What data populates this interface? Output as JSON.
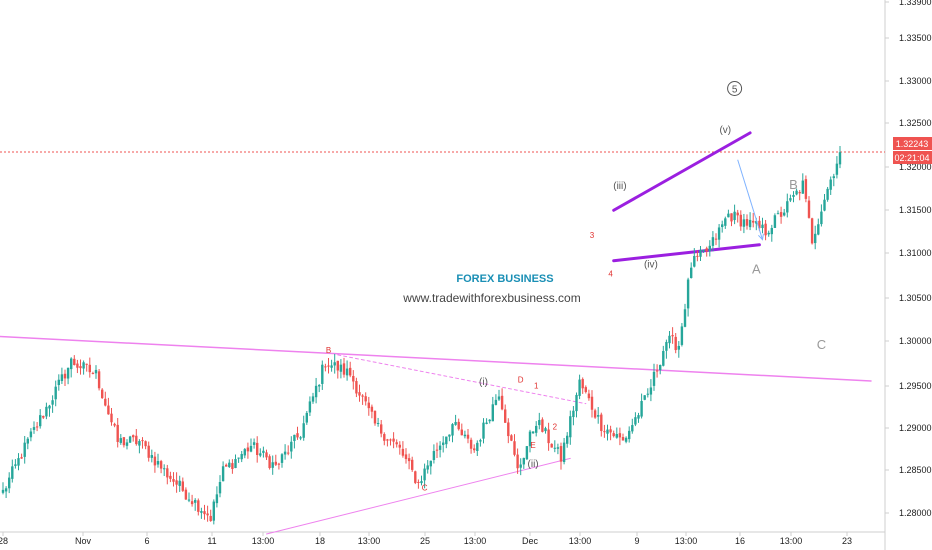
{
  "chart_data": {
    "type": "candlestick",
    "title": "",
    "xlabel": "",
    "ylabel": "",
    "ylim": [
      1.277,
      1.34
    ],
    "grid": false,
    "legend": "none",
    "x_ticks": [
      "28",
      "Nov",
      "6",
      "11",
      "13:00",
      "18",
      "13:00",
      "25",
      "13:00",
      "Dec",
      "13:00",
      "9",
      "13:00",
      "16",
      "13:00",
      "23"
    ],
    "y_ticks": [
      "1.28000",
      "1.28500",
      "1.29000",
      "1.29500",
      "1.30000",
      "1.30500",
      "1.31000",
      "1.31500",
      "1.32000",
      "1.32500",
      "1.33000",
      "1.33500",
      "1.33900"
    ],
    "price_label": "1.32243",
    "price_line": 1.32243,
    "countdown_label": "02:21:04",
    "watermark_title": "FOREX BUSINESS",
    "watermark_url": "www.tradewithforexbusiness.com",
    "waypoints": [
      [
        0,
        1.282
      ],
      [
        8,
        1.288
      ],
      [
        14,
        1.292
      ],
      [
        22,
        1.2975
      ],
      [
        30,
        1.296
      ],
      [
        37,
        1.288
      ],
      [
        44,
        1.288
      ],
      [
        52,
        1.2845
      ],
      [
        60,
        1.2815
      ],
      [
        67,
        1.279
      ],
      [
        71,
        1.2845
      ],
      [
        80,
        1.2875
      ],
      [
        88,
        1.285
      ],
      [
        96,
        1.289
      ],
      [
        104,
        1.2975
      ],
      [
        112,
        1.296
      ],
      [
        120,
        1.29
      ],
      [
        128,
        1.287
      ],
      [
        134,
        1.283
      ],
      [
        138,
        1.286
      ],
      [
        145,
        1.29
      ],
      [
        152,
        1.287
      ],
      [
        160,
        1.294
      ],
      [
        166,
        1.2845
      ],
      [
        172,
        1.2905
      ],
      [
        180,
        1.286
      ],
      [
        186,
        1.295
      ],
      [
        193,
        1.29
      ],
      [
        200,
        1.288
      ],
      [
        208,
        1.2935
      ],
      [
        214,
        1.3
      ],
      [
        218,
        1.2995
      ],
      [
        222,
        1.309
      ],
      [
        228,
        1.311
      ],
      [
        234,
        1.315
      ],
      [
        240,
        1.314
      ],
      [
        246,
        1.313
      ],
      [
        252,
        1.3155
      ],
      [
        258,
        1.3185
      ],
      [
        261,
        1.312
      ],
      [
        265,
        1.317
      ],
      [
        270,
        1.3224
      ]
    ],
    "annotations": [
      {
        "text": "B",
        "x": 105,
        "y": 1.2985,
        "color": "#e0302e"
      },
      {
        "text": "C",
        "x": 136,
        "y": 1.2822,
        "color": "#e0302e"
      },
      {
        "text": "(i)",
        "x": 155,
        "y": 1.2947,
        "color": "#555555"
      },
      {
        "text": "D",
        "x": 167,
        "y": 1.295,
        "color": "#e0302e"
      },
      {
        "text": "1",
        "x": 172,
        "y": 1.2943,
        "color": "#e0302e"
      },
      {
        "text": "E",
        "x": 171,
        "y": 1.2872,
        "color": "#e0302e"
      },
      {
        "text": "2",
        "x": 178,
        "y": 1.2894,
        "color": "#e0302e"
      },
      {
        "text": "(ii)",
        "x": 171,
        "y": 1.285,
        "color": "#555555"
      },
      {
        "text": "3",
        "x": 190,
        "y": 1.3122,
        "color": "#e0302e"
      },
      {
        "text": "4",
        "x": 196,
        "y": 1.3076,
        "color": "#e0302e"
      },
      {
        "text": "(iii)",
        "x": 199,
        "y": 1.318,
        "color": "#555555"
      },
      {
        "text": "(iv)",
        "x": 209,
        "y": 1.3087,
        "color": "#555555"
      },
      {
        "text": "(v)",
        "x": 233,
        "y": 1.3247,
        "color": "#555555"
      },
      {
        "text": "5",
        "x": 236,
        "y": 1.3295,
        "color": "#555555",
        "circled": true
      },
      {
        "text": "B",
        "x": 255,
        "y": 1.318,
        "color": "#999999"
      },
      {
        "text": "A",
        "x": 243,
        "y": 1.308,
        "color": "#999999"
      },
      {
        "text": "C",
        "x": 264,
        "y": 1.299,
        "color": "#999999"
      }
    ],
    "trend_lines": [
      {
        "from": [
          -2,
          1.3005
        ],
        "to": [
          280,
          1.2952
        ],
        "color": "#ee82ee",
        "width": 1.5,
        "dash": false
      },
      {
        "from": [
          85,
          1.277
        ],
        "to": [
          183,
          1.286
        ],
        "color": "#ee82ee",
        "width": 1,
        "dash": false
      },
      {
        "from": [
          108,
          1.2983
        ],
        "to": [
          188,
          1.2925
        ],
        "color": "#ee82ee",
        "width": 1,
        "dash": true
      },
      {
        "from": [
          197,
          1.3155
        ],
        "to": [
          241,
          1.3247
        ],
        "color": "#9b1fe0",
        "width": 3,
        "dash": false
      },
      {
        "from": [
          197,
          1.3095
        ],
        "to": [
          244,
          1.3114
        ],
        "color": "#9b1fe0",
        "width": 3,
        "dash": false
      }
    ],
    "arrow": {
      "from": [
        237,
        1.3215
      ],
      "to": [
        245,
        1.312
      ],
      "color": "#7fb3ff"
    }
  }
}
